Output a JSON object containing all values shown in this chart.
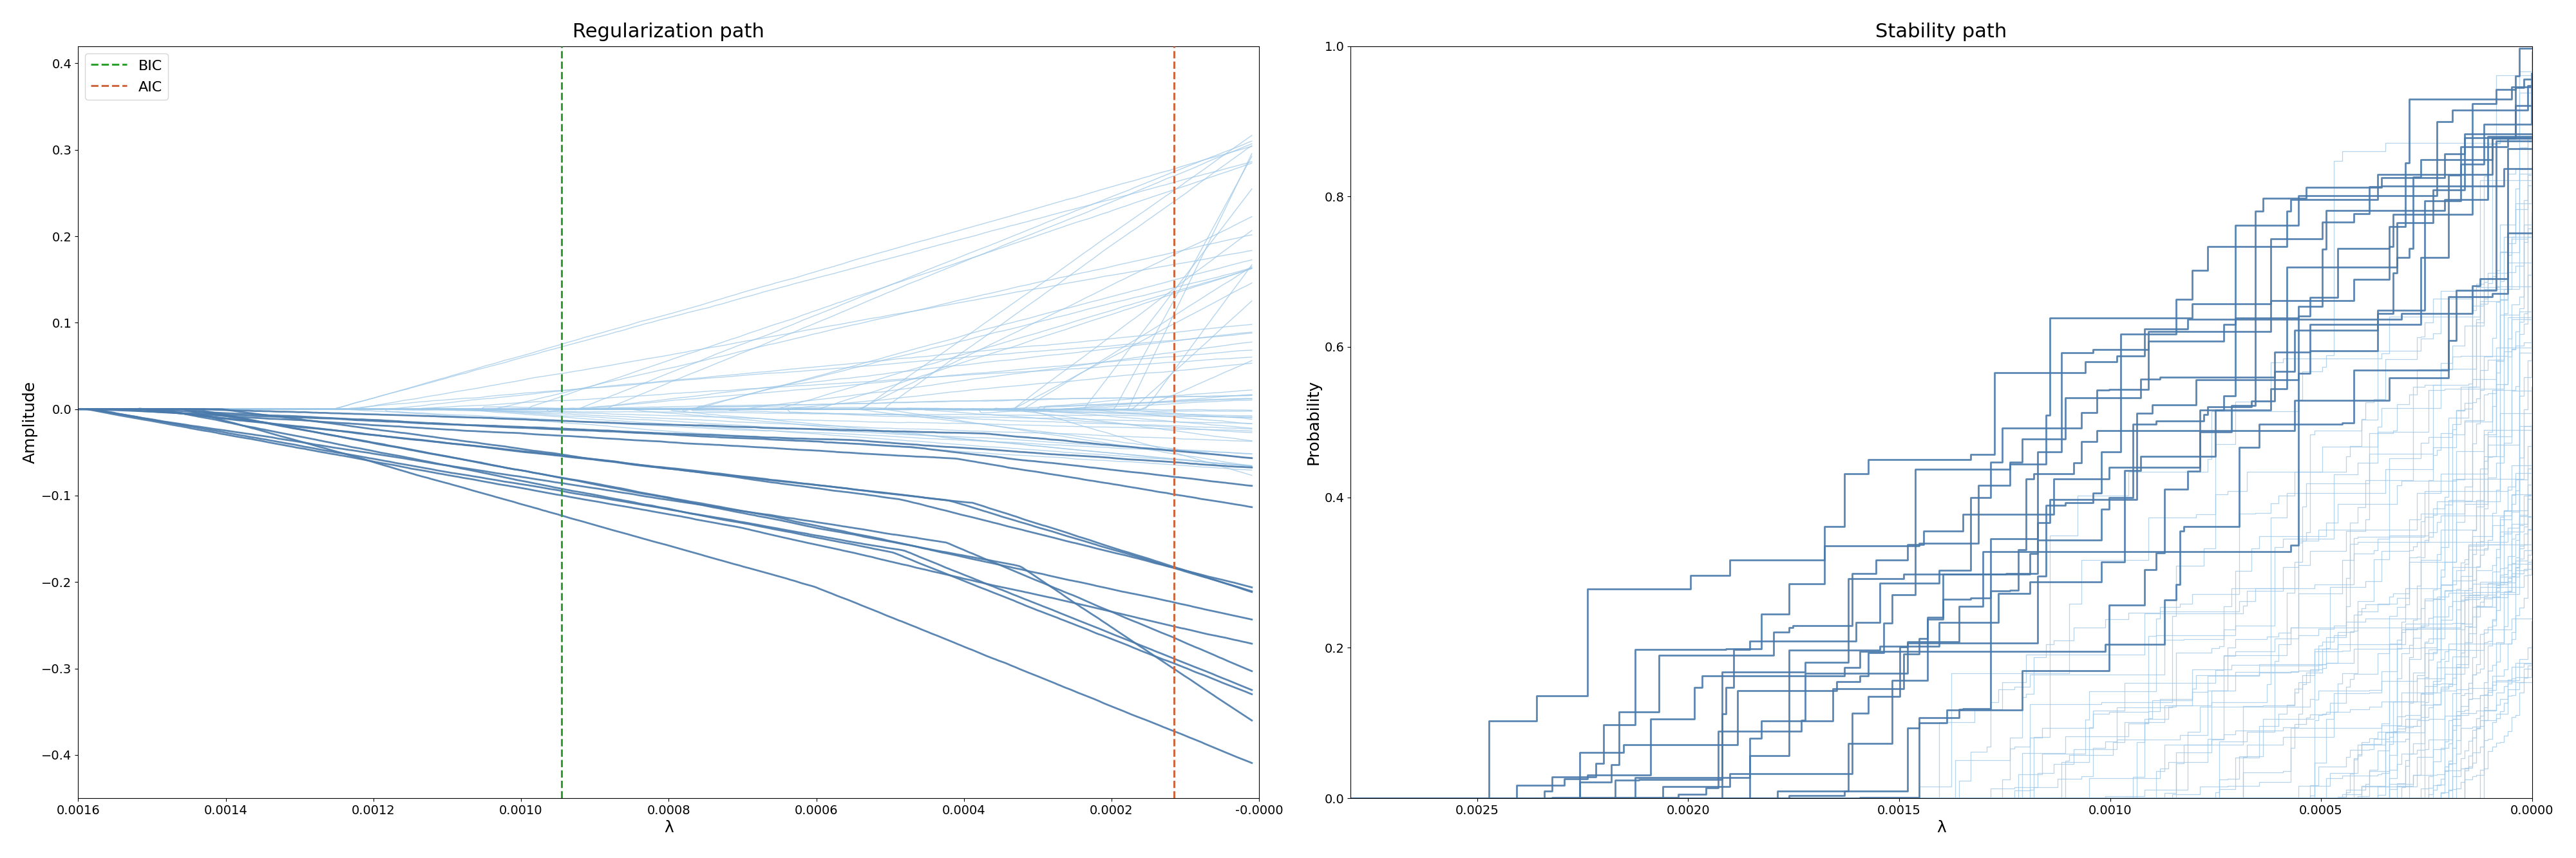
{
  "reg_title": "Regularization path",
  "stab_title": "Stability path",
  "reg_xlabel": "λ",
  "reg_ylabel": "Amplitude",
  "stab_xlabel": "λ",
  "stab_ylabel": "Probability",
  "reg_xlim": [
    0.0016,
    0.0
  ],
  "reg_ylim": [
    -0.45,
    0.42
  ],
  "stab_xlim": [
    0.0028,
    0.0
  ],
  "stab_ylim": [
    0.0,
    1.0
  ],
  "bic_lambda": 0.000945,
  "aic_lambda": 0.000115,
  "bic_color": "#2ca02c",
  "aic_color": "#cd6841",
  "n_task_trs": 14,
  "n_light_trs": 60,
  "dark_color": "#4a7aab",
  "light_color": "#9ec8e8",
  "seed": 7
}
